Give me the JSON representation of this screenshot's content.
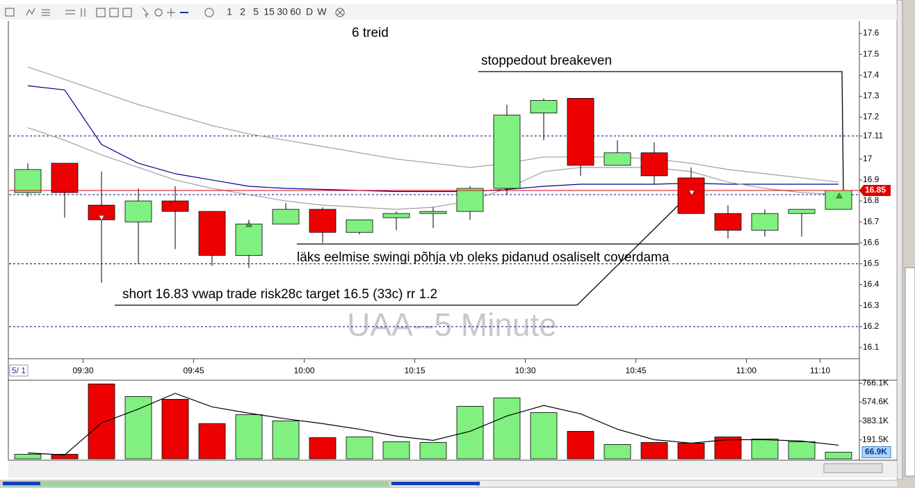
{
  "toolbar": {
    "intervals": [
      "1",
      "2",
      "5",
      "15",
      "30",
      "60",
      "D",
      "W"
    ]
  },
  "chart_data": [
    {
      "type": "candlestick",
      "title": "UAA--5 Minute",
      "date_label": "5/ 1",
      "categories": [
        null,
        null,
        "09:30",
        null,
        null,
        "09:45",
        null,
        null,
        "10:00",
        null,
        null,
        "10:15",
        null,
        null,
        "10:30",
        null,
        null,
        "10:45",
        null,
        null,
        "11:00",
        null,
        "11:10"
      ],
      "open": [
        16.84,
        16.98,
        16.78,
        16.7,
        16.8,
        16.75,
        16.54,
        16.69,
        16.76,
        16.65,
        16.72,
        16.74,
        16.75,
        16.86,
        17.22,
        17.29,
        16.97,
        17.03,
        16.91,
        16.74,
        16.66,
        16.74,
        16.76
      ],
      "high": [
        16.98,
        16.98,
        16.94,
        16.86,
        16.87,
        16.75,
        16.71,
        16.79,
        16.77,
        16.71,
        16.75,
        16.77,
        16.87,
        17.26,
        17.29,
        17.29,
        17.09,
        17.08,
        16.96,
        16.78,
        16.76,
        16.76,
        16.85
      ],
      "low": [
        16.82,
        16.72,
        16.41,
        16.5,
        16.57,
        16.49,
        16.48,
        16.69,
        16.6,
        16.64,
        16.66,
        16.67,
        16.71,
        16.83,
        17.09,
        16.92,
        16.97,
        16.88,
        16.74,
        16.62,
        16.63,
        16.63,
        16.76
      ],
      "close": [
        16.95,
        16.84,
        16.71,
        16.8,
        16.75,
        16.54,
        16.69,
        16.76,
        16.65,
        16.71,
        16.74,
        16.75,
        16.86,
        17.21,
        17.28,
        16.97,
        17.03,
        16.92,
        16.74,
        16.66,
        16.74,
        16.76,
        16.85
      ],
      "up_color": "#80f080",
      "down_color": "#ee0000",
      "overlays": [
        {
          "color": "#a0a0a0",
          "values": [
            17.44,
            17.38,
            17.32,
            17.26,
            17.21,
            17.16,
            17.12,
            17.09,
            17.06,
            17.03,
            17.0,
            16.98,
            16.96,
            16.98,
            17.01,
            17.01,
            17.01,
            17.0,
            16.98,
            16.95,
            16.93,
            16.91,
            16.89
          ]
        },
        {
          "color": "#000090",
          "values": [
            17.35,
            17.33,
            17.07,
            16.98,
            16.93,
            16.9,
            16.87,
            16.86,
            16.855,
            16.85,
            16.845,
            16.845,
            16.845,
            16.855,
            16.87,
            16.88,
            16.88,
            16.88,
            16.885,
            16.88,
            16.88,
            16.88,
            16.88
          ]
        },
        {
          "color": "#a0a0a0",
          "values": [
            17.15,
            17.09,
            17.02,
            16.96,
            16.9,
            16.86,
            16.83,
            16.8,
            16.78,
            16.77,
            16.76,
            16.77,
            16.8,
            16.86,
            16.94,
            16.96,
            16.96,
            16.96,
            16.94,
            16.89,
            16.86,
            16.84,
            16.83
          ]
        }
      ],
      "ylim": [
        16.05,
        17.66
      ],
      "yticks": [
        17.6,
        17.5,
        17.4,
        17.3,
        17.2,
        17.11,
        17,
        16.9,
        16.8,
        16.7,
        16.6,
        16.5,
        16.4,
        16.3,
        16.2,
        16.1
      ],
      "levels": [
        17.11,
        16.83,
        16.5,
        16.2
      ],
      "annotations": [
        "6 treid",
        "stoppedout breakeven",
        "läks eelmise swingi põhja vb oleks pidanud osaliselt coverdama",
        "short 16.83 vwap trade risk28c target 16.5 (33c) rr 1.2"
      ]
    },
    {
      "type": "bar",
      "values": [
        46000,
        46000,
        760000,
        632000,
        604000,
        357000,
        448000,
        385000,
        215000,
        222000,
        173000,
        166000,
        533000,
        618000,
        470000,
        279000,
        145000,
        166000,
        159000,
        222000,
        201000,
        173000,
        66900
      ],
      "value_labels": [
        null,
        null,
        null,
        null,
        null,
        null,
        null,
        null,
        null,
        null,
        null,
        null,
        null,
        null,
        null,
        null,
        null,
        null,
        null,
        null,
        null,
        null,
        "66.9K"
      ],
      "average": [
        60000,
        39000,
        364000,
        505000,
        664000,
        527000,
        463000,
        406000,
        357000,
        300000,
        230000,
        187000,
        279000,
        434000,
        541000,
        456000,
        300000,
        194000,
        159000,
        194000,
        194000,
        180000,
        138000
      ],
      "average_color": "#000000",
      "ylim": [
        0,
        790000
      ],
      "yticks": [
        {
          "value": 766100,
          "label": "766.1K"
        },
        {
          "value": 574600,
          "label": "574.6K"
        },
        {
          "value": 383100,
          "label": "383.1K"
        },
        {
          "value": 191500,
          "label": "191.5K"
        }
      ]
    }
  ]
}
